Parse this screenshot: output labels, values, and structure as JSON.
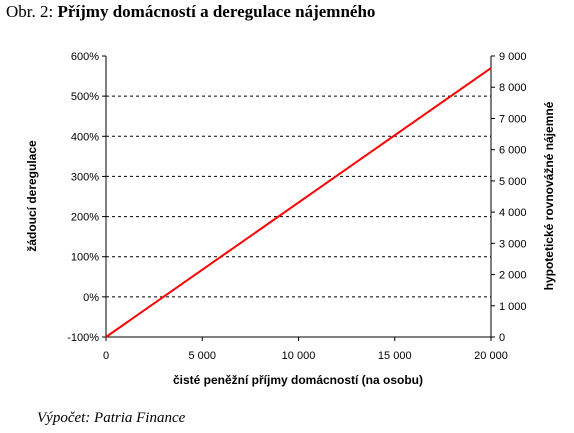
{
  "figure": {
    "label": "Obr. 2:",
    "title": "Příjmy domácností a deregulace nájemného",
    "source": "Výpočet: Patria Finance"
  },
  "chart_data": {
    "type": "line",
    "xlabel": "čisté peněžní příjmy domácností (na osobu)",
    "ylabel_left": "žádoucí deregulace",
    "ylabel_right": "hypotetické rovnovážné nájemné",
    "xlim": [
      0,
      20000
    ],
    "ylim_left": [
      -1.0,
      6.0
    ],
    "ylim_right": [
      0,
      9000
    ],
    "x_ticks": [
      0,
      5000,
      10000,
      15000,
      20000
    ],
    "x_tick_labels": [
      "0",
      "5 000",
      "10 000",
      "15 000",
      "20 000"
    ],
    "y_left_ticks": [
      -1,
      0,
      1,
      2,
      3,
      4,
      5,
      6
    ],
    "y_left_tick_labels": [
      "-100%",
      "0%",
      "100%",
      "200%",
      "300%",
      "400%",
      "500%",
      "600%"
    ],
    "y_right_ticks": [
      0,
      1000,
      2000,
      3000,
      4000,
      5000,
      6000,
      7000,
      8000,
      9000
    ],
    "y_right_tick_labels": [
      "0",
      "1 000",
      "2 000",
      "3 000",
      "4 000",
      "5 000",
      "6 000",
      "7 000",
      "8 000",
      "9 000"
    ],
    "grid": "horizontal dashed at left-axis ticks",
    "series": [
      {
        "color": "#ff0000",
        "axis": "left",
        "x": [
          0,
          20000
        ],
        "y": [
          -1.0,
          5.7
        ]
      }
    ]
  }
}
